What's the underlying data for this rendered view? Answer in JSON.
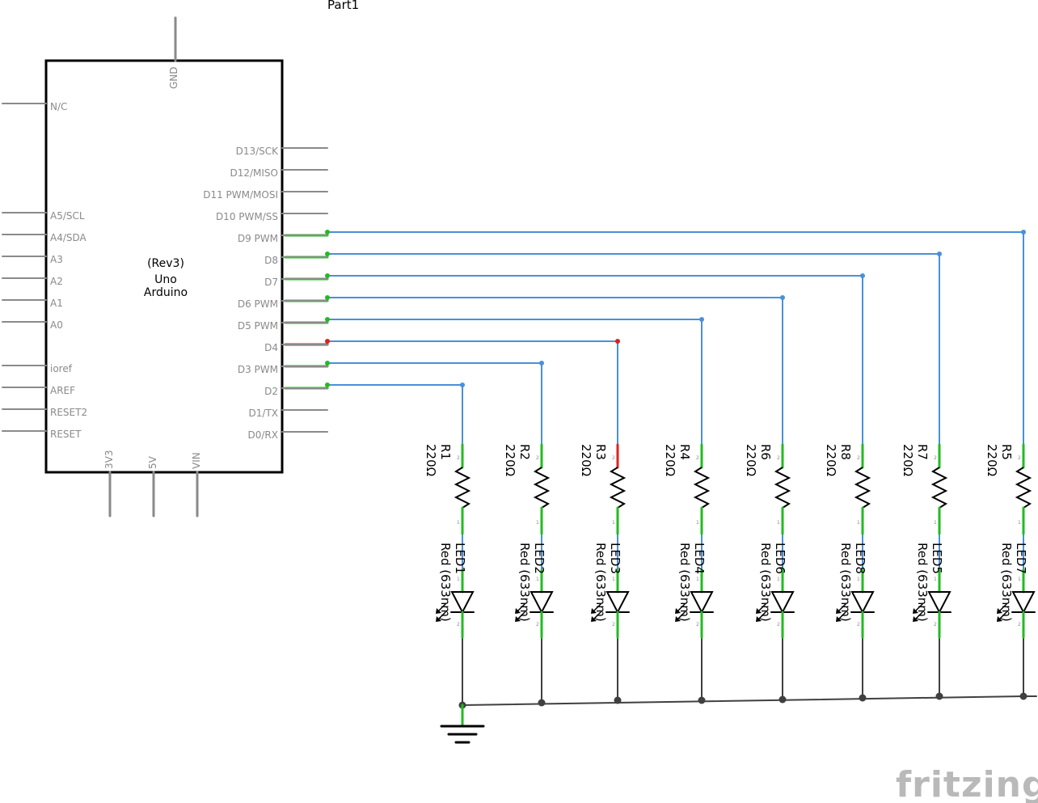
{
  "part_title": "Part1",
  "board": {
    "name_lines": [
      "(Rev3)",
      "Uno",
      "Arduino"
    ],
    "top_pin": "GND",
    "left_pins": [
      "N/C",
      "A5/SCL",
      "A4/SDA",
      "A3",
      "A2",
      "A1",
      "A0",
      "ioref",
      "AREF",
      "RESET2",
      "RESET"
    ],
    "right_pins": [
      "D13/SCK",
      "D12/MISO",
      "D11 PWM/MOSI",
      "D10 PWM/SS",
      "D9 PWM",
      "D8",
      "D7",
      "D6 PWM",
      "D5 PWM",
      "D4",
      "D3 PWM",
      "D2",
      "D1/TX",
      "D0/RX"
    ],
    "bottom_pins": [
      "3V3",
      "5V",
      "VIN"
    ]
  },
  "branches": [
    {
      "pin": "D2",
      "resistor": "R1",
      "led": "LED1"
    },
    {
      "pin": "D3 PWM",
      "resistor": "R2",
      "led": "LED2"
    },
    {
      "pin": "D4",
      "resistor": "R3",
      "led": "LED3"
    },
    {
      "pin": "D5 PWM",
      "resistor": "R4",
      "led": "LED4"
    },
    {
      "pin": "D6 PWM",
      "resistor": "R6",
      "led": "LED6"
    },
    {
      "pin": "D7",
      "resistor": "R8",
      "led": "LED8"
    },
    {
      "pin": "D8",
      "resistor": "R7",
      "led": "LED5"
    },
    {
      "pin": "D9 PWM",
      "resistor": "R5",
      "led": "LED7"
    }
  ],
  "resistor_value": "220Ω",
  "led_value": "Red (633nm)",
  "pin_numbers": {
    "top": "2",
    "bottom": "1"
  },
  "watermark": "fritzing",
  "colors": {
    "wire": "#4a90d9",
    "connected": "#22bb22",
    "unconnected": "#dd2222",
    "ground_wire": "#404040",
    "pin": "#8a8a8a"
  }
}
